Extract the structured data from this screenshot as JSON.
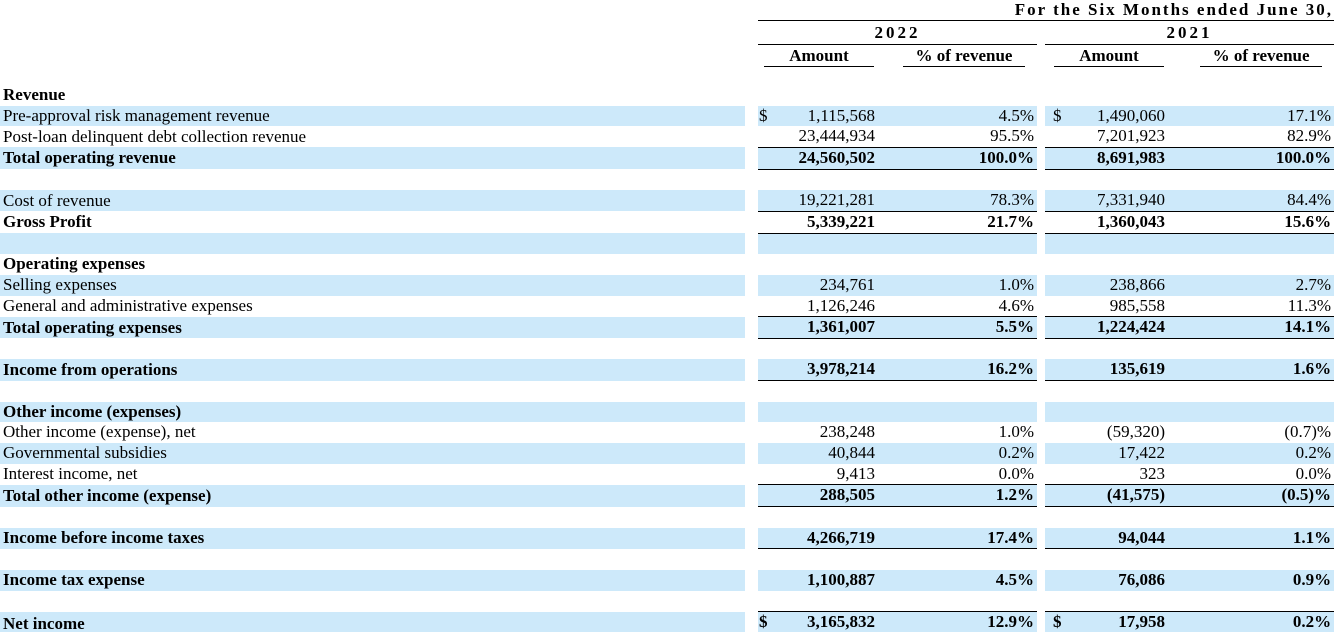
{
  "currency_symbol": "$",
  "colors": {
    "row_highlight": "#cde9fa",
    "text": "#000000",
    "background": "#ffffff"
  },
  "header": {
    "period_title": "For the Six Months ended June 30,",
    "col_groups": [
      {
        "year": "2022",
        "amount_label": "Amount",
        "pct_label": "% of revenue"
      },
      {
        "year": "2021",
        "amount_label": "Amount",
        "pct_label": "% of revenue"
      }
    ]
  },
  "rows": [
    {
      "type": "section",
      "label": "Revenue",
      "bold": true,
      "shade": "white"
    },
    {
      "type": "data",
      "label": "Pre-approval risk management revenue",
      "shade": "blue",
      "dollar": true,
      "a1": "1,115,568",
      "p1": "4.5%",
      "a2": "1,490,060",
      "p2": "17.1%"
    },
    {
      "type": "data",
      "label": "Post-loan delinquent debt collection revenue",
      "shade": "white",
      "border": "bb",
      "a1": "23,444,934",
      "p1": "95.5%",
      "a2": "7,201,923",
      "p2": "82.9%"
    },
    {
      "type": "data",
      "label": "Total operating revenue",
      "bold": true,
      "shade": "blue",
      "border": "bb",
      "a1": "24,560,502",
      "p1": "100.0%",
      "a2": "8,691,983",
      "p2": "100.0%"
    },
    {
      "type": "spacer",
      "shade": "white"
    },
    {
      "type": "data",
      "label": "Cost of revenue",
      "shade": "blue",
      "border": "bb",
      "a1": "19,221,281",
      "p1": "78.3%",
      "a2": "7,331,940",
      "p2": "84.4%"
    },
    {
      "type": "data",
      "label": "Gross Profit",
      "bold": true,
      "shade": "white",
      "border": "bb",
      "a1": "5,339,221",
      "p1": "21.7%",
      "a2": "1,360,043",
      "p2": "15.6%"
    },
    {
      "type": "spacer",
      "shade": "blue"
    },
    {
      "type": "section",
      "label": "Operating expenses",
      "bold": true,
      "shade": "white"
    },
    {
      "type": "data",
      "label": "Selling expenses",
      "shade": "blue",
      "a1": "234,761",
      "p1": "1.0%",
      "a2": "238,866",
      "p2": "2.7%"
    },
    {
      "type": "data",
      "label": "General and administrative expenses",
      "shade": "white",
      "border": "bb",
      "a1": "1,126,246",
      "p1": "4.6%",
      "a2": "985,558",
      "p2": "11.3%"
    },
    {
      "type": "data",
      "label": "Total operating expenses",
      "bold": true,
      "shade": "blue",
      "border": "bb",
      "a1": "1,361,007",
      "p1": "5.5%",
      "a2": "1,224,424",
      "p2": "14.1%"
    },
    {
      "type": "spacer",
      "shade": "white"
    },
    {
      "type": "data",
      "label": "Income from operations",
      "bold": true,
      "shade": "blue",
      "border": "bb",
      "a1": "3,978,214",
      "p1": "16.2%",
      "a2": "135,619",
      "p2": "1.6%"
    },
    {
      "type": "spacer",
      "shade": "white"
    },
    {
      "type": "section",
      "label": "Other income (expenses)",
      "bold": true,
      "shade": "blue"
    },
    {
      "type": "data",
      "label": "Other income (expense), net",
      "shade": "white",
      "a1": "238,248",
      "p1": "1.0%",
      "a2": "(59,320)",
      "p2": "(0.7)%"
    },
    {
      "type": "data",
      "label": "Governmental subsidies",
      "shade": "blue",
      "a1": "40,844",
      "p1": "0.2%",
      "a2": "17,422",
      "p2": "0.2%"
    },
    {
      "type": "data",
      "label": "Interest income, net",
      "shade": "white",
      "border": "bb",
      "a1": "9,413",
      "p1": "0.0%",
      "a2": "323",
      "p2": "0.0%"
    },
    {
      "type": "data",
      "label": "Total other income (expense)",
      "bold": true,
      "shade": "blue",
      "border": "bb",
      "a1": "288,505",
      "p1": "1.2%",
      "a2": "(41,575)",
      "p2": "(0.5)%"
    },
    {
      "type": "spacer",
      "shade": "white"
    },
    {
      "type": "data",
      "label": "Income before income taxes",
      "bold": true,
      "shade": "blue",
      "border": "bb",
      "a1": "4,266,719",
      "p1": "17.4%",
      "a2": "94,044",
      "p2": "1.1%"
    },
    {
      "type": "spacer",
      "shade": "white"
    },
    {
      "type": "data",
      "label": "Income tax expense",
      "bold": true,
      "shade": "blue",
      "a1": "1,100,887",
      "p1": "4.5%",
      "a2": "76,086",
      "p2": "0.9%"
    },
    {
      "type": "spacer",
      "shade": "white"
    },
    {
      "type": "data",
      "label": "Net income",
      "bold": true,
      "shade": "blue",
      "border": "net",
      "dollar": true,
      "a1": "3,165,832",
      "p1": "12.9%",
      "a2": "17,958",
      "p2": "0.2%"
    },
    {
      "type": "spacer",
      "shade": "white",
      "small": true
    },
    {
      "type": "spacer",
      "shade": "blue",
      "end": true
    }
  ]
}
